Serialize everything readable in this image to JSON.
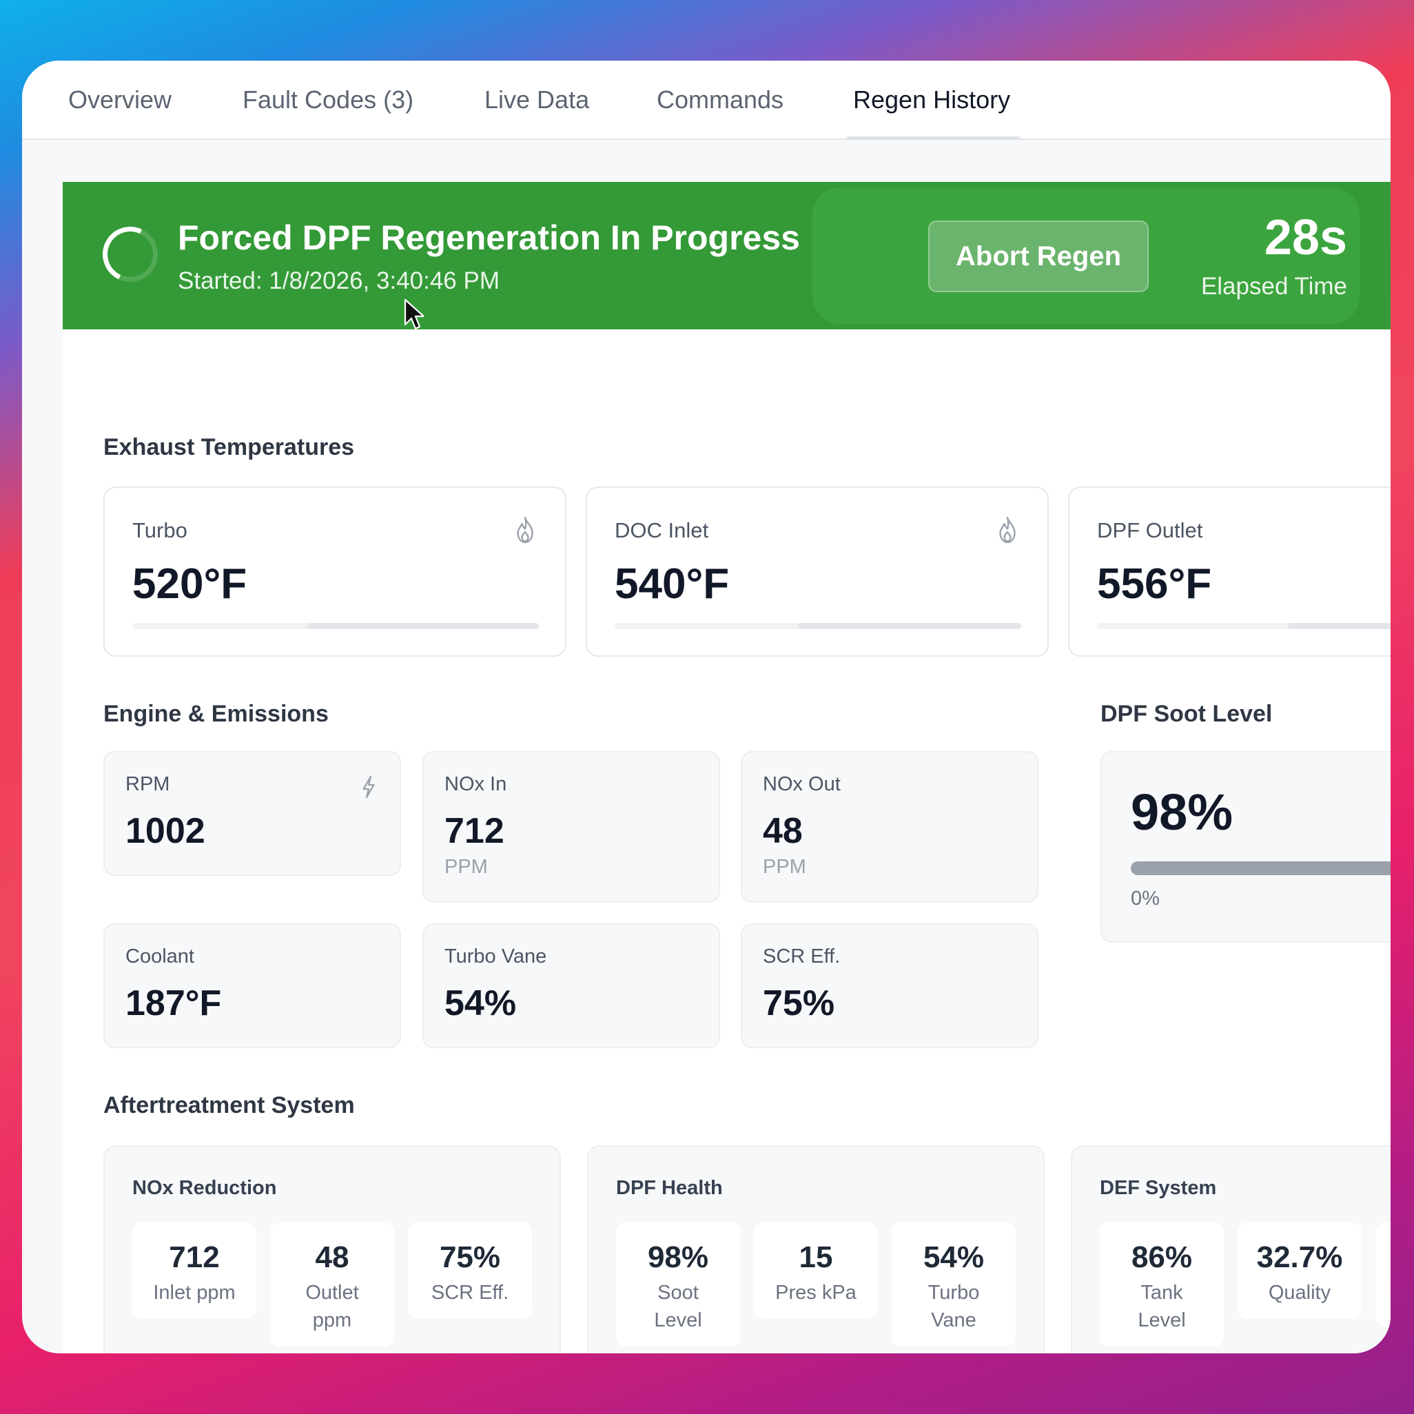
{
  "tabs": [
    {
      "label": "Overview"
    },
    {
      "label": "Fault Codes (3)"
    },
    {
      "label": "Live Data"
    },
    {
      "label": "Commands"
    },
    {
      "label": "Regen History",
      "active": true
    }
  ],
  "banner": {
    "title": "Forced DPF Regeneration In Progress",
    "started": "Started: 1/8/2026, 3:40:46 PM",
    "abort_label": "Abort Regen",
    "elapsed_value": "28s",
    "elapsed_label": "Elapsed Time",
    "color": "#349a37"
  },
  "exhaust": {
    "title": "Exhaust Temperatures",
    "cards": [
      {
        "label": "Turbo",
        "value": "520°F",
        "icon": "flame-icon",
        "fill_percent": 57
      },
      {
        "label": "DOC Inlet",
        "value": "540°F",
        "icon": "flame-icon",
        "fill_percent": 55
      },
      {
        "label": "DPF Outlet",
        "value": "556°F",
        "icon": "flame-icon",
        "fill_percent": 53
      }
    ]
  },
  "engine": {
    "title": "Engine & Emissions",
    "metrics": [
      {
        "label": "RPM",
        "value": "1002",
        "unit": "",
        "icon": "lightning-icon"
      },
      {
        "label": "NOx In",
        "value": "712",
        "unit": "PPM"
      },
      {
        "label": "NOx Out",
        "value": "48",
        "unit": "PPM"
      },
      {
        "label": "Coolant",
        "value": "187°F",
        "unit": ""
      },
      {
        "label": "Turbo Vane",
        "value": "54%",
        "unit": ""
      },
      {
        "label": "SCR Eff.",
        "value": "75%",
        "unit": ""
      }
    ]
  },
  "soot": {
    "title": "DPF Soot Level",
    "value": "98%",
    "fill_percent": 98,
    "min_label": "0%"
  },
  "aftertreatment": {
    "title": "Aftertreatment System",
    "cards": [
      {
        "title": "NOx Reduction",
        "tiles": [
          {
            "value": "712",
            "label": "Inlet ppm"
          },
          {
            "value": "48",
            "label": "Outlet ppm"
          },
          {
            "value": "75%",
            "label": "SCR Eff."
          }
        ]
      },
      {
        "title": "DPF Health",
        "tiles": [
          {
            "value": "98%",
            "label": "Soot Level"
          },
          {
            "value": "15",
            "label": "Pres kPa"
          },
          {
            "value": "54%",
            "label": "Turbo Vane"
          }
        ]
      },
      {
        "title": "DEF System",
        "tiles": [
          {
            "value": "86%",
            "label": "Tank Level"
          },
          {
            "value": "32.7%",
            "label": "Quality"
          }
        ]
      }
    ]
  }
}
